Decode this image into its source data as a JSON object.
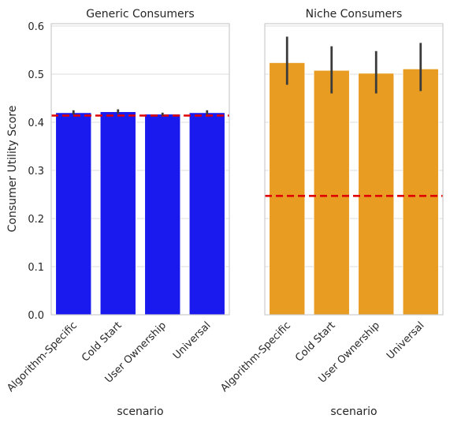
{
  "chart_data": [
    {
      "type": "bar",
      "title": "Generic Consumers",
      "xlabel": "scenario",
      "ylabel": "Consumer Utility Score",
      "categories": [
        "Algorithm-Specific",
        "Cold Start",
        "User Ownership",
        "Universal"
      ],
      "values": [
        0.42,
        0.422,
        0.417,
        0.42
      ],
      "error_bars": [
        [
          0.416,
          0.425
        ],
        [
          0.418,
          0.427
        ],
        [
          0.414,
          0.42
        ],
        [
          0.416,
          0.425
        ]
      ],
      "reference_line": 0.414,
      "reference_color": "#e00000",
      "bar_color": "#1a1aee",
      "ylim": [
        0,
        0.605
      ],
      "yticks": [
        "0.0",
        "0.1",
        "0.2",
        "0.3",
        "0.4",
        "0.5",
        "0.6"
      ],
      "grid": true
    },
    {
      "type": "bar",
      "title": "Niche Consumers",
      "xlabel": "scenario",
      "ylabel": "",
      "categories": [
        "Algorithm-Specific",
        "Cold Start",
        "User Ownership",
        "Universal"
      ],
      "values": [
        0.524,
        0.508,
        0.502,
        0.511
      ],
      "error_bars": [
        [
          0.478,
          0.578
        ],
        [
          0.46,
          0.558
        ],
        [
          0.46,
          0.548
        ],
        [
          0.465,
          0.565
        ]
      ],
      "reference_line": 0.247,
      "reference_color": "#e00000",
      "bar_color": "#e89c22",
      "ylim": [
        0,
        0.605
      ],
      "shared_y": true,
      "grid": true
    }
  ]
}
